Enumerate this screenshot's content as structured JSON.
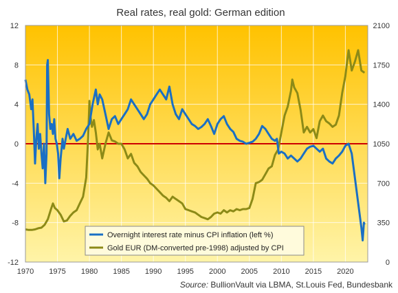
{
  "chart_data": {
    "type": "line",
    "title": "Real rates, real gold: German edition",
    "source_label": "Source:",
    "source_text": "BullionVault via LBMA, St.Louis Fed, Bundesbank",
    "xlim": [
      1970,
      2023.5
    ],
    "x_ticks": [
      1970,
      1975,
      1980,
      1985,
      1990,
      1995,
      2000,
      2005,
      2010,
      2015,
      2020
    ],
    "ylim_left": [
      -12,
      12
    ],
    "y_ticks_left": [
      -12,
      -8,
      -4,
      0,
      4,
      8,
      12
    ],
    "ylim_right": [
      0,
      2100
    ],
    "y_ticks_right": [
      0,
      350,
      700,
      1050,
      1400,
      1750,
      2100
    ],
    "reference_line": {
      "y": 0,
      "axis": "left",
      "color": "#cc0000"
    },
    "grid": "vertical-and-horizontal",
    "legend_position": "bottom-center",
    "background_gradient": [
      "#ffc200",
      "#fff4a8"
    ],
    "series": [
      {
        "name": "Overnight interest rate minus CPI inflation (left %)",
        "axis": "left",
        "color": "#1a6fc4",
        "points": [
          [
            1970.0,
            6.5
          ],
          [
            1970.3,
            5.5
          ],
          [
            1970.6,
            5.0
          ],
          [
            1970.9,
            3.5
          ],
          [
            1971.1,
            4.5
          ],
          [
            1971.3,
            1.5
          ],
          [
            1971.5,
            -2.0
          ],
          [
            1971.7,
            0.5
          ],
          [
            1971.9,
            2.0
          ],
          [
            1972.1,
            -0.5
          ],
          [
            1972.3,
            1.0
          ],
          [
            1972.5,
            -1.0
          ],
          [
            1972.7,
            -2.5
          ],
          [
            1972.9,
            0.0
          ],
          [
            1973.1,
            -4.0
          ],
          [
            1973.3,
            -1.0
          ],
          [
            1973.4,
            8.0
          ],
          [
            1973.5,
            8.5
          ],
          [
            1973.7,
            3.0
          ],
          [
            1973.9,
            1.5
          ],
          [
            1974.1,
            2.0
          ],
          [
            1974.3,
            1.0
          ],
          [
            1974.5,
            2.5
          ],
          [
            1974.7,
            0.5
          ],
          [
            1974.9,
            0.0
          ],
          [
            1975.1,
            -1.0
          ],
          [
            1975.3,
            -3.5
          ],
          [
            1975.5,
            -1.5
          ],
          [
            1975.8,
            0.5
          ],
          [
            1976.0,
            -0.5
          ],
          [
            1976.3,
            0.5
          ],
          [
            1976.6,
            1.5
          ],
          [
            1977.0,
            0.5
          ],
          [
            1977.5,
            1.0
          ],
          [
            1978.0,
            0.3
          ],
          [
            1978.5,
            0.5
          ],
          [
            1979.0,
            0.8
          ],
          [
            1979.5,
            1.5
          ],
          [
            1980.0,
            2.0
          ],
          [
            1980.5,
            4.0
          ],
          [
            1981.0,
            5.5
          ],
          [
            1981.3,
            4.0
          ],
          [
            1981.6,
            5.0
          ],
          [
            1982.0,
            4.5
          ],
          [
            1982.5,
            3.0
          ],
          [
            1983.0,
            1.5
          ],
          [
            1983.5,
            2.5
          ],
          [
            1984.0,
            2.8
          ],
          [
            1984.5,
            2.0
          ],
          [
            1985.0,
            2.5
          ],
          [
            1985.5,
            3.0
          ],
          [
            1986.0,
            3.5
          ],
          [
            1986.5,
            4.5
          ],
          [
            1987.0,
            4.0
          ],
          [
            1987.5,
            3.5
          ],
          [
            1988.0,
            3.0
          ],
          [
            1988.5,
            2.5
          ],
          [
            1989.0,
            3.0
          ],
          [
            1989.5,
            4.0
          ],
          [
            1990.0,
            4.5
          ],
          [
            1990.5,
            5.0
          ],
          [
            1991.0,
            5.5
          ],
          [
            1991.5,
            5.0
          ],
          [
            1992.0,
            4.5
          ],
          [
            1992.5,
            5.8
          ],
          [
            1993.0,
            4.0
          ],
          [
            1993.5,
            3.0
          ],
          [
            1994.0,
            2.5
          ],
          [
            1994.5,
            3.5
          ],
          [
            1995.0,
            3.0
          ],
          [
            1995.5,
            2.5
          ],
          [
            1996.0,
            2.0
          ],
          [
            1996.5,
            1.8
          ],
          [
            1997.0,
            1.5
          ],
          [
            1997.5,
            1.7
          ],
          [
            1998.0,
            2.0
          ],
          [
            1998.5,
            2.5
          ],
          [
            1999.0,
            1.8
          ],
          [
            1999.5,
            1.0
          ],
          [
            2000.0,
            2.0
          ],
          [
            2000.5,
            2.5
          ],
          [
            2001.0,
            2.8
          ],
          [
            2001.5,
            2.0
          ],
          [
            2002.0,
            1.5
          ],
          [
            2002.5,
            1.2
          ],
          [
            2003.0,
            0.5
          ],
          [
            2003.5,
            0.3
          ],
          [
            2004.0,
            0.2
          ],
          [
            2004.5,
            0.0
          ],
          [
            2005.0,
            0.1
          ],
          [
            2005.5,
            0.2
          ],
          [
            2006.0,
            0.5
          ],
          [
            2006.5,
            1.0
          ],
          [
            2007.0,
            1.8
          ],
          [
            2007.5,
            1.5
          ],
          [
            2008.0,
            1.0
          ],
          [
            2008.5,
            0.5
          ],
          [
            2009.0,
            0.3
          ],
          [
            2009.3,
            0.5
          ],
          [
            2009.6,
            -1.0
          ],
          [
            2010.0,
            -0.8
          ],
          [
            2010.5,
            -1.0
          ],
          [
            2011.0,
            -1.5
          ],
          [
            2011.5,
            -1.2
          ],
          [
            2012.0,
            -1.5
          ],
          [
            2012.5,
            -1.8
          ],
          [
            2013.0,
            -1.5
          ],
          [
            2013.5,
            -1.0
          ],
          [
            2014.0,
            -0.5
          ],
          [
            2014.5,
            -0.3
          ],
          [
            2015.0,
            -0.2
          ],
          [
            2015.5,
            -0.5
          ],
          [
            2016.0,
            -0.8
          ],
          [
            2016.5,
            -0.5
          ],
          [
            2017.0,
            -1.5
          ],
          [
            2017.5,
            -1.8
          ],
          [
            2018.0,
            -2.0
          ],
          [
            2018.5,
            -1.5
          ],
          [
            2019.0,
            -1.2
          ],
          [
            2019.5,
            -0.8
          ],
          [
            2020.0,
            -0.2
          ],
          [
            2020.5,
            0.0
          ],
          [
            2021.0,
            -1.0
          ],
          [
            2021.3,
            -2.5
          ],
          [
            2021.6,
            -4.0
          ],
          [
            2021.9,
            -5.5
          ],
          [
            2022.2,
            -7.0
          ],
          [
            2022.5,
            -8.5
          ],
          [
            2022.7,
            -9.8
          ],
          [
            2022.9,
            -8.0
          ],
          [
            2023.0,
            -8.2
          ]
        ]
      },
      {
        "name": "Gold EUR (DM-converted pre-1998) adjusted by CPI",
        "axis": "right",
        "color": "#8c8a17",
        "points": [
          [
            1970.0,
            290
          ],
          [
            1970.5,
            285
          ],
          [
            1971.0,
            285
          ],
          [
            1971.5,
            290
          ],
          [
            1972.0,
            300
          ],
          [
            1972.5,
            305
          ],
          [
            1973.0,
            330
          ],
          [
            1973.5,
            380
          ],
          [
            1974.0,
            470
          ],
          [
            1974.3,
            520
          ],
          [
            1974.6,
            480
          ],
          [
            1975.0,
            460
          ],
          [
            1975.5,
            420
          ],
          [
            1976.0,
            360
          ],
          [
            1976.5,
            370
          ],
          [
            1977.0,
            410
          ],
          [
            1977.5,
            440
          ],
          [
            1978.0,
            460
          ],
          [
            1978.5,
            520
          ],
          [
            1979.0,
            580
          ],
          [
            1979.5,
            750
          ],
          [
            1979.8,
            1100
          ],
          [
            1980.0,
            1430
          ],
          [
            1980.2,
            1280
          ],
          [
            1980.4,
            1200
          ],
          [
            1980.7,
            1260
          ],
          [
            1981.0,
            1150
          ],
          [
            1981.3,
            1000
          ],
          [
            1981.6,
            1050
          ],
          [
            1982.0,
            920
          ],
          [
            1982.5,
            1050
          ],
          [
            1983.0,
            1150
          ],
          [
            1983.5,
            1080
          ],
          [
            1984.0,
            1070
          ],
          [
            1984.5,
            1050
          ],
          [
            1985.0,
            1050
          ],
          [
            1985.5,
            1000
          ],
          [
            1986.0,
            920
          ],
          [
            1986.5,
            960
          ],
          [
            1987.0,
            880
          ],
          [
            1987.5,
            850
          ],
          [
            1988.0,
            800
          ],
          [
            1988.5,
            770
          ],
          [
            1989.0,
            740
          ],
          [
            1989.5,
            700
          ],
          [
            1990.0,
            680
          ],
          [
            1990.5,
            650
          ],
          [
            1991.0,
            620
          ],
          [
            1991.5,
            590
          ],
          [
            1992.0,
            570
          ],
          [
            1992.5,
            540
          ],
          [
            1993.0,
            580
          ],
          [
            1993.5,
            560
          ],
          [
            1994.0,
            540
          ],
          [
            1994.5,
            520
          ],
          [
            1995.0,
            470
          ],
          [
            1995.5,
            460
          ],
          [
            1996.0,
            450
          ],
          [
            1996.5,
            440
          ],
          [
            1997.0,
            420
          ],
          [
            1997.5,
            400
          ],
          [
            1998.0,
            390
          ],
          [
            1998.5,
            380
          ],
          [
            1999.0,
            400
          ],
          [
            1999.5,
            430
          ],
          [
            2000.0,
            440
          ],
          [
            2000.5,
            430
          ],
          [
            2001.0,
            460
          ],
          [
            2001.5,
            440
          ],
          [
            2002.0,
            460
          ],
          [
            2002.5,
            450
          ],
          [
            2003.0,
            470
          ],
          [
            2003.5,
            460
          ],
          [
            2004.0,
            470
          ],
          [
            2004.5,
            470
          ],
          [
            2005.0,
            480
          ],
          [
            2005.5,
            560
          ],
          [
            2006.0,
            700
          ],
          [
            2006.5,
            710
          ],
          [
            2007.0,
            730
          ],
          [
            2007.5,
            780
          ],
          [
            2008.0,
            830
          ],
          [
            2008.5,
            850
          ],
          [
            2009.0,
            950
          ],
          [
            2009.5,
            1000
          ],
          [
            2010.0,
            1150
          ],
          [
            2010.5,
            1300
          ],
          [
            2011.0,
            1380
          ],
          [
            2011.5,
            1520
          ],
          [
            2011.7,
            1620
          ],
          [
            2012.0,
            1550
          ],
          [
            2012.5,
            1500
          ],
          [
            2013.0,
            1350
          ],
          [
            2013.5,
            1150
          ],
          [
            2014.0,
            1200
          ],
          [
            2014.5,
            1150
          ],
          [
            2015.0,
            1180
          ],
          [
            2015.5,
            1100
          ],
          [
            2016.0,
            1250
          ],
          [
            2016.5,
            1300
          ],
          [
            2017.0,
            1250
          ],
          [
            2017.5,
            1230
          ],
          [
            2018.0,
            1200
          ],
          [
            2018.5,
            1220
          ],
          [
            2019.0,
            1300
          ],
          [
            2019.5,
            1500
          ],
          [
            2020.0,
            1650
          ],
          [
            2020.5,
            1880
          ],
          [
            2021.0,
            1700
          ],
          [
            2021.5,
            1780
          ],
          [
            2022.0,
            1880
          ],
          [
            2022.5,
            1700
          ],
          [
            2023.0,
            1680
          ]
        ]
      }
    ]
  }
}
